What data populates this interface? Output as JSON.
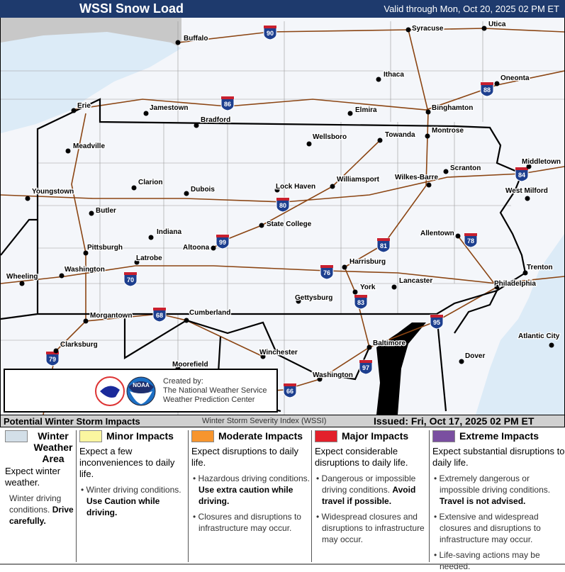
{
  "header": {
    "title": "WSSI Snow Load",
    "valid": "Valid through Mon, Oct 20, 2025 02 PM ET"
  },
  "map": {
    "colors": {
      "lake": "#dcebf7",
      "canada": "#c8c8c8",
      "roads": "#8b4513",
      "borders": "#000000",
      "shield": "#1d3f8f",
      "shield_top": "#c8202f"
    },
    "cities": [
      "Buffalo",
      "Syracuse",
      "Utica",
      "Ithaca",
      "Oneonta",
      "Erie",
      "Jamestown",
      "Bradford",
      "Elmira",
      "Binghamton",
      "Meadville",
      "Wellsboro",
      "Towanda",
      "Montrose",
      "Middletown",
      "Scranton",
      "Youngstown",
      "Clarion",
      "Dubois",
      "Lock Haven",
      "Williamsport",
      "Wilkes-Barre",
      "West Milford",
      "Butler",
      "State College",
      "Indiana",
      "Allentown",
      "Pittsburgh",
      "Altoona",
      "Latrobe",
      "Harrisburg",
      "Washington",
      "Trenton",
      "Wheeling",
      "Philadelphia",
      "Lancaster",
      "York",
      "Gettysburg",
      "Morgantown",
      "Cumberland",
      "Atlantic City",
      "Clarksburg",
      "Baltimore",
      "Dover",
      "Winchester",
      "Moorefield",
      "Washington"
    ],
    "interstates": [
      "90",
      "86",
      "88",
      "84",
      "80",
      "99",
      "81",
      "78",
      "76",
      "70",
      "83",
      "68",
      "95",
      "79",
      "97",
      "66"
    ]
  },
  "credit": {
    "line1": "Created by:",
    "line2": "The National Weather Service",
    "line3": "Weather Prediction Center",
    "logo1": "NATIONAL WEATHER SERVICE",
    "logo2": "NOAA"
  },
  "legend": {
    "title": "Potential Winter Storm Impacts",
    "index": "Winter Storm Severity Index (WSSI)",
    "issued": "Issued: Fri, Oct 17, 2025 02 PM ET",
    "categories": [
      {
        "name": "Winter Weather Area",
        "color": "#d3dfe8",
        "summary": "Expect winter weather.",
        "bullets": [
          {
            "text": "Winter driving conditions.",
            "bold": "Drive carefully."
          }
        ]
      },
      {
        "name": "Minor Impacts",
        "color": "#fbf6a0",
        "summary": "Expect a few inconveniences to daily life.",
        "bullets": [
          {
            "text": "Winter driving conditions.",
            "bold": "Use Caution while driving."
          }
        ]
      },
      {
        "name": "Moderate Impacts",
        "color": "#f7952e",
        "summary": "Expect disruptions to daily life.",
        "bullets": [
          {
            "text": "Hazardous driving conditions.",
            "bold": "Use extra caution while driving."
          },
          {
            "text": "Closures and disruptions to infrastructure may occur.",
            "bold": ""
          }
        ]
      },
      {
        "name": "Major Impacts",
        "color": "#e3202b",
        "summary": "Expect considerable disruptions to daily life.",
        "bullets": [
          {
            "text": "Dangerous or impossible driving conditions.",
            "bold": "Avoid travel if possible."
          },
          {
            "text": "Widespread closures and disruptions to infrastructure may occur.",
            "bold": ""
          }
        ]
      },
      {
        "name": "Extreme Impacts",
        "color": "#7a4fa0",
        "summary": "Expect substantial disruptions to daily life.",
        "bullets": [
          {
            "text": "Extremely dangerous or impossible driving conditions.",
            "bold": "Travel is not advised."
          },
          {
            "text": "Extensive and widespread closures and disruptions to infrastructure may occur.",
            "bold": ""
          },
          {
            "text": "Life-saving actions may be needed.",
            "bold": ""
          }
        ]
      }
    ]
  }
}
